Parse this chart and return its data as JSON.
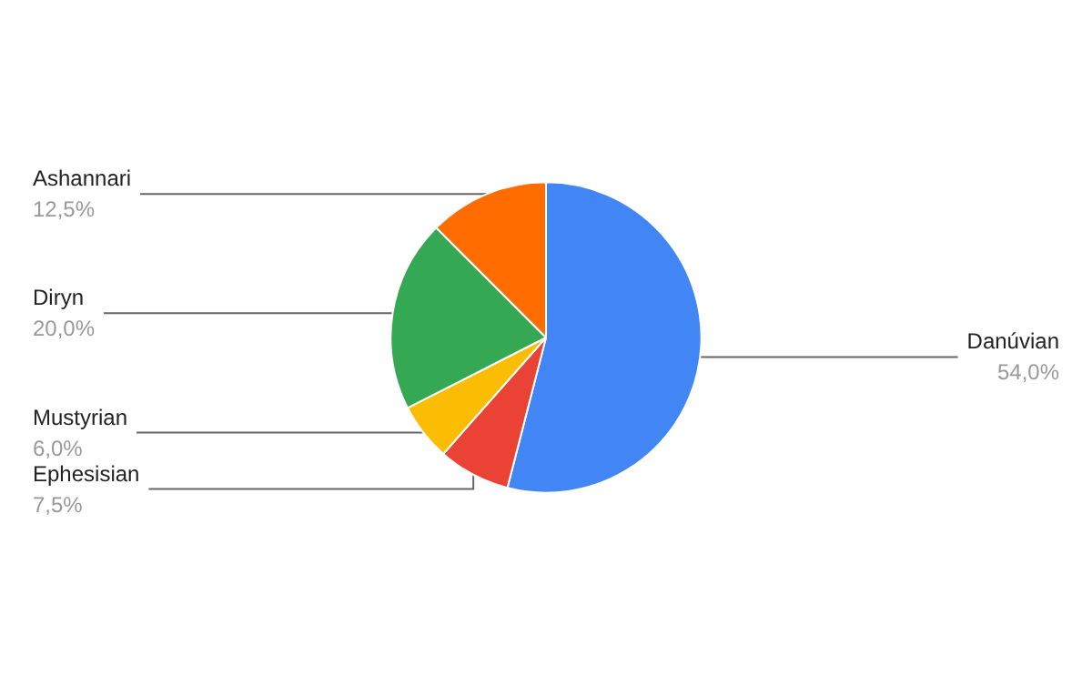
{
  "chart_data": {
    "type": "pie",
    "categories": [
      "Danúvian",
      "Ephesisian",
      "Mustyrian",
      "Diryn",
      "Ashannari"
    ],
    "values": [
      54.0,
      7.5,
      6.0,
      20.0,
      12.5
    ],
    "colors": [
      "#4285f4",
      "#ea4335",
      "#fbbc04",
      "#34a853",
      "#ff6d01"
    ],
    "value_labels": [
      "54,0%",
      "7,5%",
      "6,0%",
      "20,0%",
      "12,5%"
    ]
  }
}
